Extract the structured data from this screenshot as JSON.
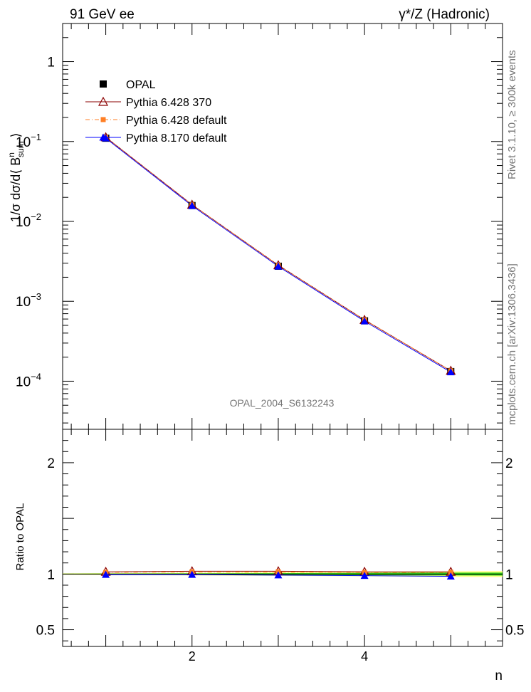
{
  "header": {
    "left": "91 GeV ee",
    "right": "γ*/Z (Hadronic)"
  },
  "side_text": {
    "rivet": "Rivet 3.1.10, ≥ 300k events",
    "mcplots": "mcplots.cern.ch [arXiv:1306.3436]"
  },
  "analysis_label": "OPAL_2004_S6132243",
  "colors": {
    "opal": "#000000",
    "p6_370": "#8b0000",
    "p6_default": "#ff7f24",
    "p8_default": "#0000ff",
    "band_green": "#00cc00",
    "band_yellow": "#ffff66"
  },
  "chart_data": [
    {
      "type": "line",
      "panel": "main",
      "ylabel_parts": {
        "prefix": "1/σ dσ/d⟨ B",
        "sup": "n",
        "sub": "sum",
        "suffix": " ⟩"
      },
      "xlabel": "n",
      "x": [
        1,
        2,
        3,
        4,
        5
      ],
      "xlim": [
        0.5,
        5.6
      ],
      "ylim": [
        2.5e-05,
        3
      ],
      "yscale": "log",
      "y_ticks": [
        {
          "value": 1,
          "mant": "1",
          "exp": ""
        },
        {
          "value": 0.1,
          "mant": "10",
          "exp": "−1"
        },
        {
          "value": 0.01,
          "mant": "10",
          "exp": "−2"
        },
        {
          "value": 0.001,
          "mant": "10",
          "exp": "−3"
        },
        {
          "value": 0.0001,
          "mant": "10",
          "exp": "−4"
        }
      ],
      "legend_position": "top-left",
      "series": [
        {
          "name": "OPAL",
          "marker": "square",
          "values": [
            0.11,
            0.0158,
            0.00275,
            0.00057,
            0.000132
          ]
        },
        {
          "name": "Pythia 6.428 370",
          "marker": "open-triangle",
          "values": [
            0.113,
            0.0162,
            0.00283,
            0.000585,
            0.000135
          ]
        },
        {
          "name": "Pythia 6.428 default",
          "marker": "small-square",
          "values": [
            0.112,
            0.0161,
            0.00282,
            0.000583,
            0.000135
          ]
        },
        {
          "name": "Pythia 8.170 default",
          "marker": "triangle",
          "values": [
            0.11,
            0.0157,
            0.00274,
            0.000564,
            0.00013
          ]
        }
      ]
    },
    {
      "type": "line",
      "panel": "ratio",
      "ylabel": "Ratio to OPAL",
      "xlabel": "n",
      "x": [
        1,
        2,
        3,
        4,
        5
      ],
      "xlim": [
        0.5,
        5.6
      ],
      "ylim": [
        0.35,
        2.3
      ],
      "x_ticks": [
        2,
        4
      ],
      "y_ticks": [
        {
          "value": 2,
          "label": "2"
        },
        {
          "value": 1,
          "label": "1"
        },
        {
          "value": 0.5,
          "label": "0.5"
        }
      ],
      "series": [
        {
          "name": "Pythia 6.428 370",
          "values": [
            1.02,
            1.025,
            1.025,
            1.02,
            1.02
          ]
        },
        {
          "name": "Pythia 6.428 default",
          "values": [
            1.015,
            1.02,
            1.02,
            1.015,
            1.015
          ]
        },
        {
          "name": "Pythia 8.170 default",
          "values": [
            0.995,
            0.995,
            0.99,
            0.985,
            0.98
          ]
        }
      ]
    }
  ]
}
